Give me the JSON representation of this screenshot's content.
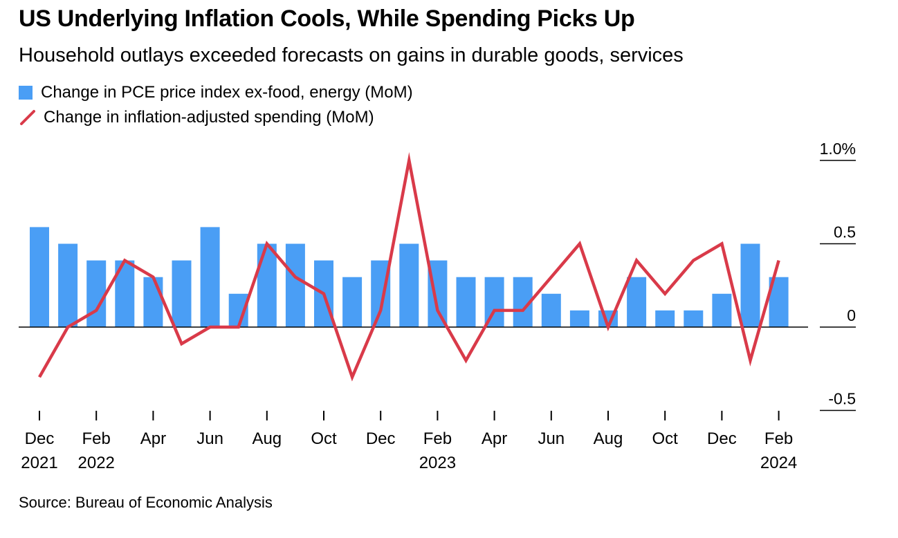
{
  "header": {
    "title": "US Underlying Inflation Cools, While Spending Picks Up",
    "subtitle": "Household outlays exceeded forecasts on gains in durable goods, services"
  },
  "footer": {
    "source": "Source: Bureau of Economic Analysis"
  },
  "colors": {
    "bar": "#4a9ef5",
    "line": "#d93a49",
    "axis": "#000000"
  },
  "chart_data": {
    "type": "bar",
    "title": "US Underlying Inflation Cools, While Spending Picks Up",
    "subtitle": "Household outlays exceeded forecasts on gains in durable goods, services",
    "ylim": [
      -0.5,
      1.0
    ],
    "y_ticks": [
      {
        "value": 1.0,
        "label": "1.0%"
      },
      {
        "value": 0.5,
        "label": "0.5"
      },
      {
        "value": 0,
        "label": "0"
      },
      {
        "value": -0.5,
        "label": "-0.5"
      }
    ],
    "y_axis_position": "right",
    "grid": false,
    "legend_position": "top-left",
    "categories": [
      "2021-12",
      "2022-01",
      "2022-02",
      "2022-03",
      "2022-04",
      "2022-05",
      "2022-06",
      "2022-07",
      "2022-08",
      "2022-09",
      "2022-10",
      "2022-11",
      "2022-12",
      "2023-01",
      "2023-02",
      "2023-03",
      "2023-04",
      "2023-05",
      "2023-06",
      "2023-07",
      "2023-08",
      "2023-09",
      "2023-10",
      "2023-11",
      "2023-12",
      "2024-01",
      "2024-02"
    ],
    "x_tick_labels": [
      {
        "index": 0,
        "month": "Dec",
        "year": "2021"
      },
      {
        "index": 2,
        "month": "Feb",
        "year": "2022"
      },
      {
        "index": 4,
        "month": "Apr",
        "year": ""
      },
      {
        "index": 6,
        "month": "Jun",
        "year": ""
      },
      {
        "index": 8,
        "month": "Aug",
        "year": ""
      },
      {
        "index": 10,
        "month": "Oct",
        "year": ""
      },
      {
        "index": 12,
        "month": "Dec",
        "year": ""
      },
      {
        "index": 14,
        "month": "Feb",
        "year": "2023"
      },
      {
        "index": 16,
        "month": "Apr",
        "year": ""
      },
      {
        "index": 18,
        "month": "Jun",
        "year": ""
      },
      {
        "index": 20,
        "month": "Aug",
        "year": ""
      },
      {
        "index": 22,
        "month": "Oct",
        "year": ""
      },
      {
        "index": 24,
        "month": "Dec",
        "year": ""
      },
      {
        "index": 26,
        "month": "Feb",
        "year": "2024"
      }
    ],
    "series": [
      {
        "name": "Change in PCE price index ex-food, energy (MoM)",
        "type": "bar",
        "values": [
          0.6,
          0.5,
          0.4,
          0.4,
          0.3,
          0.4,
          0.6,
          0.2,
          0.5,
          0.5,
          0.4,
          0.3,
          0.4,
          0.5,
          0.4,
          0.3,
          0.3,
          0.3,
          0.2,
          0.1,
          0.1,
          0.3,
          0.1,
          0.1,
          0.2,
          0.5,
          0.3
        ]
      },
      {
        "name": "Change in inflation-adjusted spending (MoM)",
        "type": "line",
        "values": [
          -0.3,
          0.0,
          0.1,
          0.4,
          0.3,
          -0.1,
          0.0,
          0.0,
          0.5,
          0.3,
          0.2,
          -0.3,
          0.1,
          1.0,
          0.1,
          -0.2,
          0.1,
          0.1,
          0.3,
          0.5,
          0.0,
          0.4,
          0.2,
          0.4,
          0.5,
          -0.2,
          0.4
        ]
      }
    ]
  }
}
